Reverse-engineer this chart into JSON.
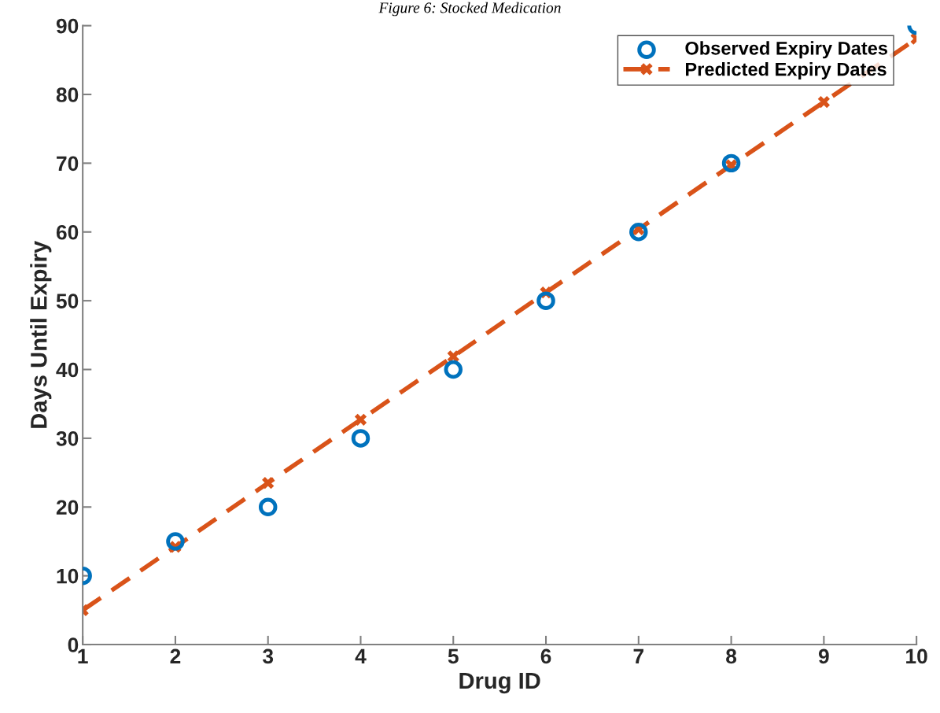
{
  "chart_data": {
    "type": "scatter",
    "title": "Figure 6: Stocked Medication",
    "xlabel": "Drug ID",
    "ylabel": "Days Until Expiry",
    "x": [
      1,
      2,
      3,
      4,
      5,
      6,
      7,
      8,
      9,
      10
    ],
    "series": [
      {
        "name": "Observed Expiry Dates",
        "color": "#0072bd",
        "marker": "circle",
        "values": [
          10,
          15,
          20,
          30,
          40,
          50,
          60,
          70,
          null,
          90
        ]
      },
      {
        "name": "Predicted Expiry Dates",
        "type": "line",
        "color": "#d95319",
        "marker": "cross",
        "line_style": "dashed",
        "values": [
          5,
          14.2,
          23.5,
          32.7,
          41.9,
          51.2,
          60.4,
          69.7,
          78.9,
          88.1
        ]
      }
    ],
    "xlim": [
      1,
      10
    ],
    "xticks": [
      1,
      2,
      3,
      4,
      5,
      6,
      7,
      8,
      9,
      10
    ],
    "ylim": [
      0,
      90
    ],
    "yticks": [
      0,
      10,
      20,
      30,
      40,
      50,
      60,
      70,
      80,
      90
    ],
    "grid": false,
    "legend": "top right"
  }
}
